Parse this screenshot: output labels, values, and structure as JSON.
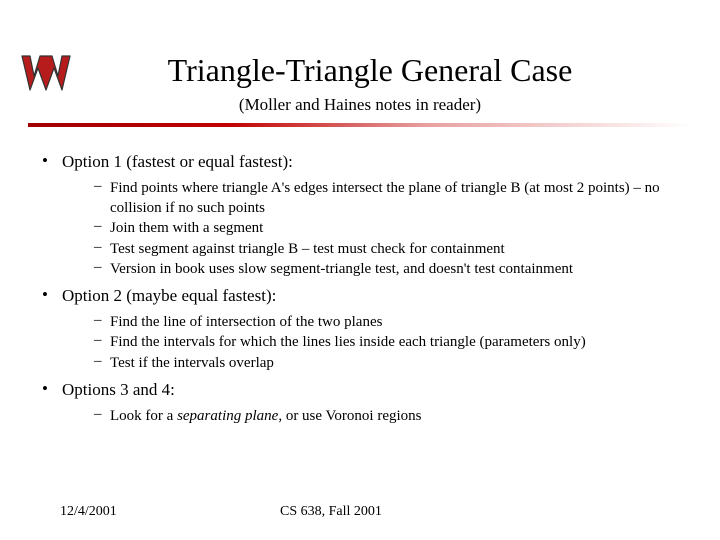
{
  "colors": {
    "background": "#ffffff",
    "text": "#000000",
    "hr_start": "#a00000",
    "hr_end": "#ffffff",
    "logo_red": "#b71c1c",
    "logo_outline": "#333333"
  },
  "typography": {
    "title_fontsize": 32,
    "subtitle_fontsize": 17,
    "body_fontsize": 17,
    "sub_fontsize": 15,
    "footer_fontsize": 14,
    "font_family": "Times New Roman"
  },
  "header": {
    "title": "Triangle-Triangle General Case",
    "subtitle": "(Moller and Haines notes in reader)"
  },
  "options": [
    {
      "label": "Option 1 (fastest or equal fastest):",
      "subs": [
        "Find points where triangle A's edges intersect the plane of triangle B (at most 2 points) – no collision if no such points",
        "Join them with a segment",
        "Test segment against triangle B – test must check for containment",
        "Version in book uses slow segment-triangle test, and doesn't test containment"
      ]
    },
    {
      "label": "Option 2 (maybe equal fastest):",
      "subs": [
        "Find the line of intersection of the two planes",
        "Find the intervals for which the lines lies inside each triangle (parameters only)",
        "Test if the intervals overlap"
      ]
    },
    {
      "label": "Options 3 and 4:",
      "subs": [
        "Look for a |separating plane|, or use Voronoi regions"
      ]
    }
  ],
  "footer": {
    "date": "12/4/2001",
    "course": "CS 638, Fall 2001"
  }
}
